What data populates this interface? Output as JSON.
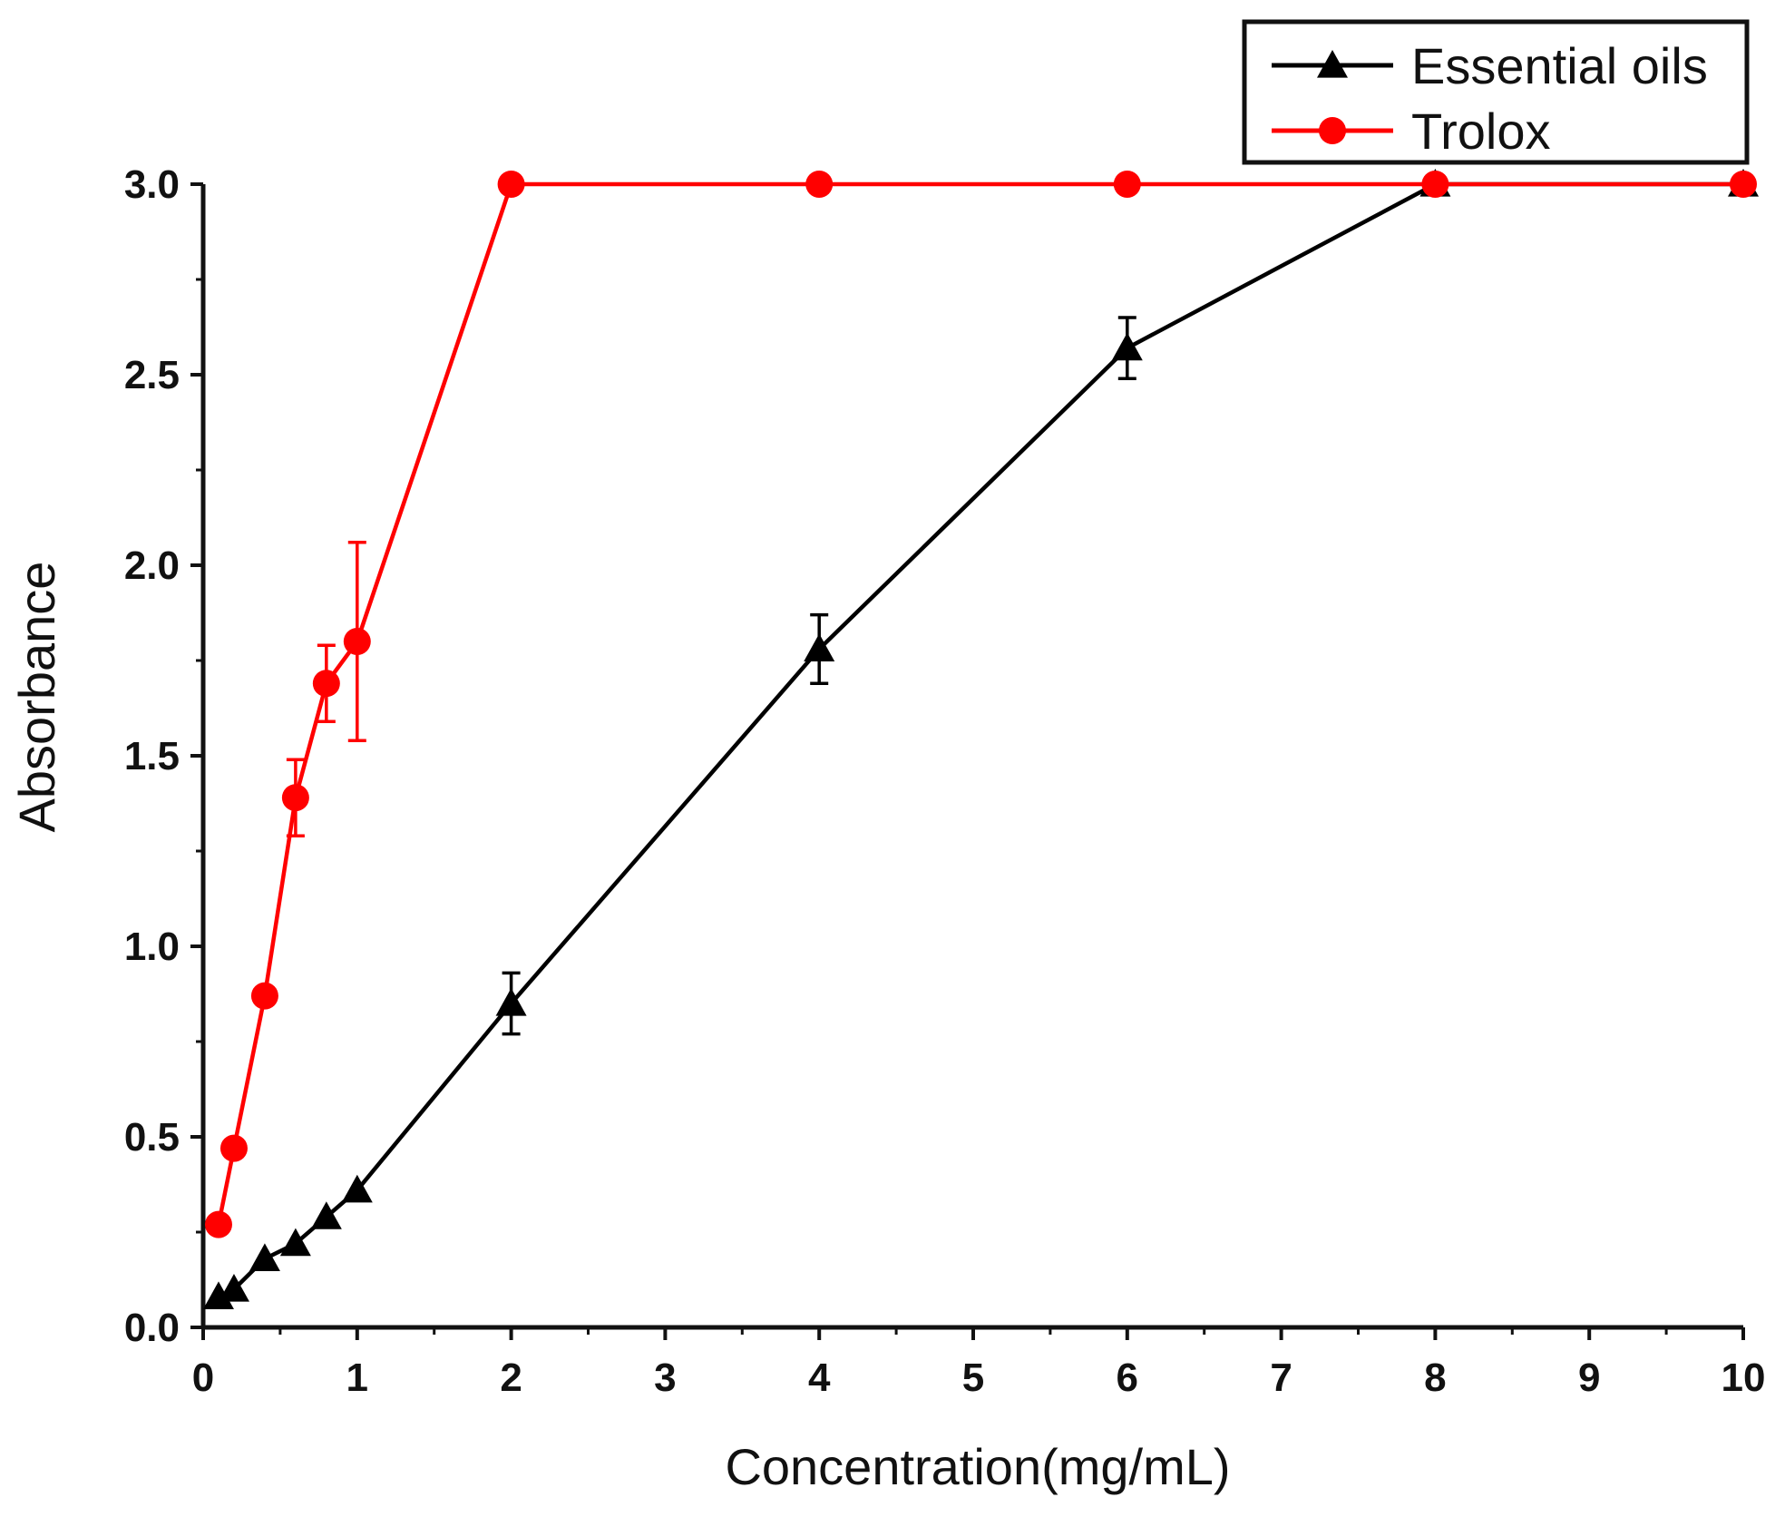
{
  "chart_data": {
    "type": "line",
    "title": "",
    "xlabel": "Concentration(mg/mL)",
    "ylabel": "Absorbance",
    "xlim": [
      0,
      10
    ],
    "ylim": [
      0,
      3.0
    ],
    "xticks": [
      "0",
      "1",
      "2",
      "3",
      "4",
      "5",
      "6",
      "7",
      "8",
      "9",
      "10"
    ],
    "yticks": [
      "0.0",
      "0.5",
      "1.0",
      "1.5",
      "2.0",
      "2.5",
      "3.0"
    ],
    "grid": false,
    "legend_position": "top-right",
    "series": [
      {
        "name": "Essential oils",
        "color": "#000000",
        "marker": "triangle",
        "x": [
          0.1,
          0.2,
          0.4,
          0.6,
          0.8,
          1,
          2,
          4,
          6,
          8,
          10
        ],
        "y": [
          0.08,
          0.1,
          0.18,
          0.22,
          0.29,
          0.36,
          0.85,
          1.78,
          2.57,
          3.0,
          3.0
        ],
        "error": [
          0,
          0,
          0,
          0,
          0,
          0,
          0.08,
          0.09,
          0.08,
          0,
          0
        ]
      },
      {
        "name": "Trolox",
        "color": "#ff0000",
        "marker": "circle",
        "x": [
          0.1,
          0.2,
          0.4,
          0.6,
          0.8,
          1,
          2,
          4,
          6,
          8,
          10
        ],
        "y": [
          0.27,
          0.47,
          0.87,
          1.39,
          1.69,
          1.8,
          3.0,
          3.0,
          3.0,
          3.0,
          3.0
        ],
        "error": [
          0,
          0,
          0,
          0.1,
          0.1,
          0.26,
          0,
          0,
          0,
          0,
          0
        ]
      }
    ]
  }
}
